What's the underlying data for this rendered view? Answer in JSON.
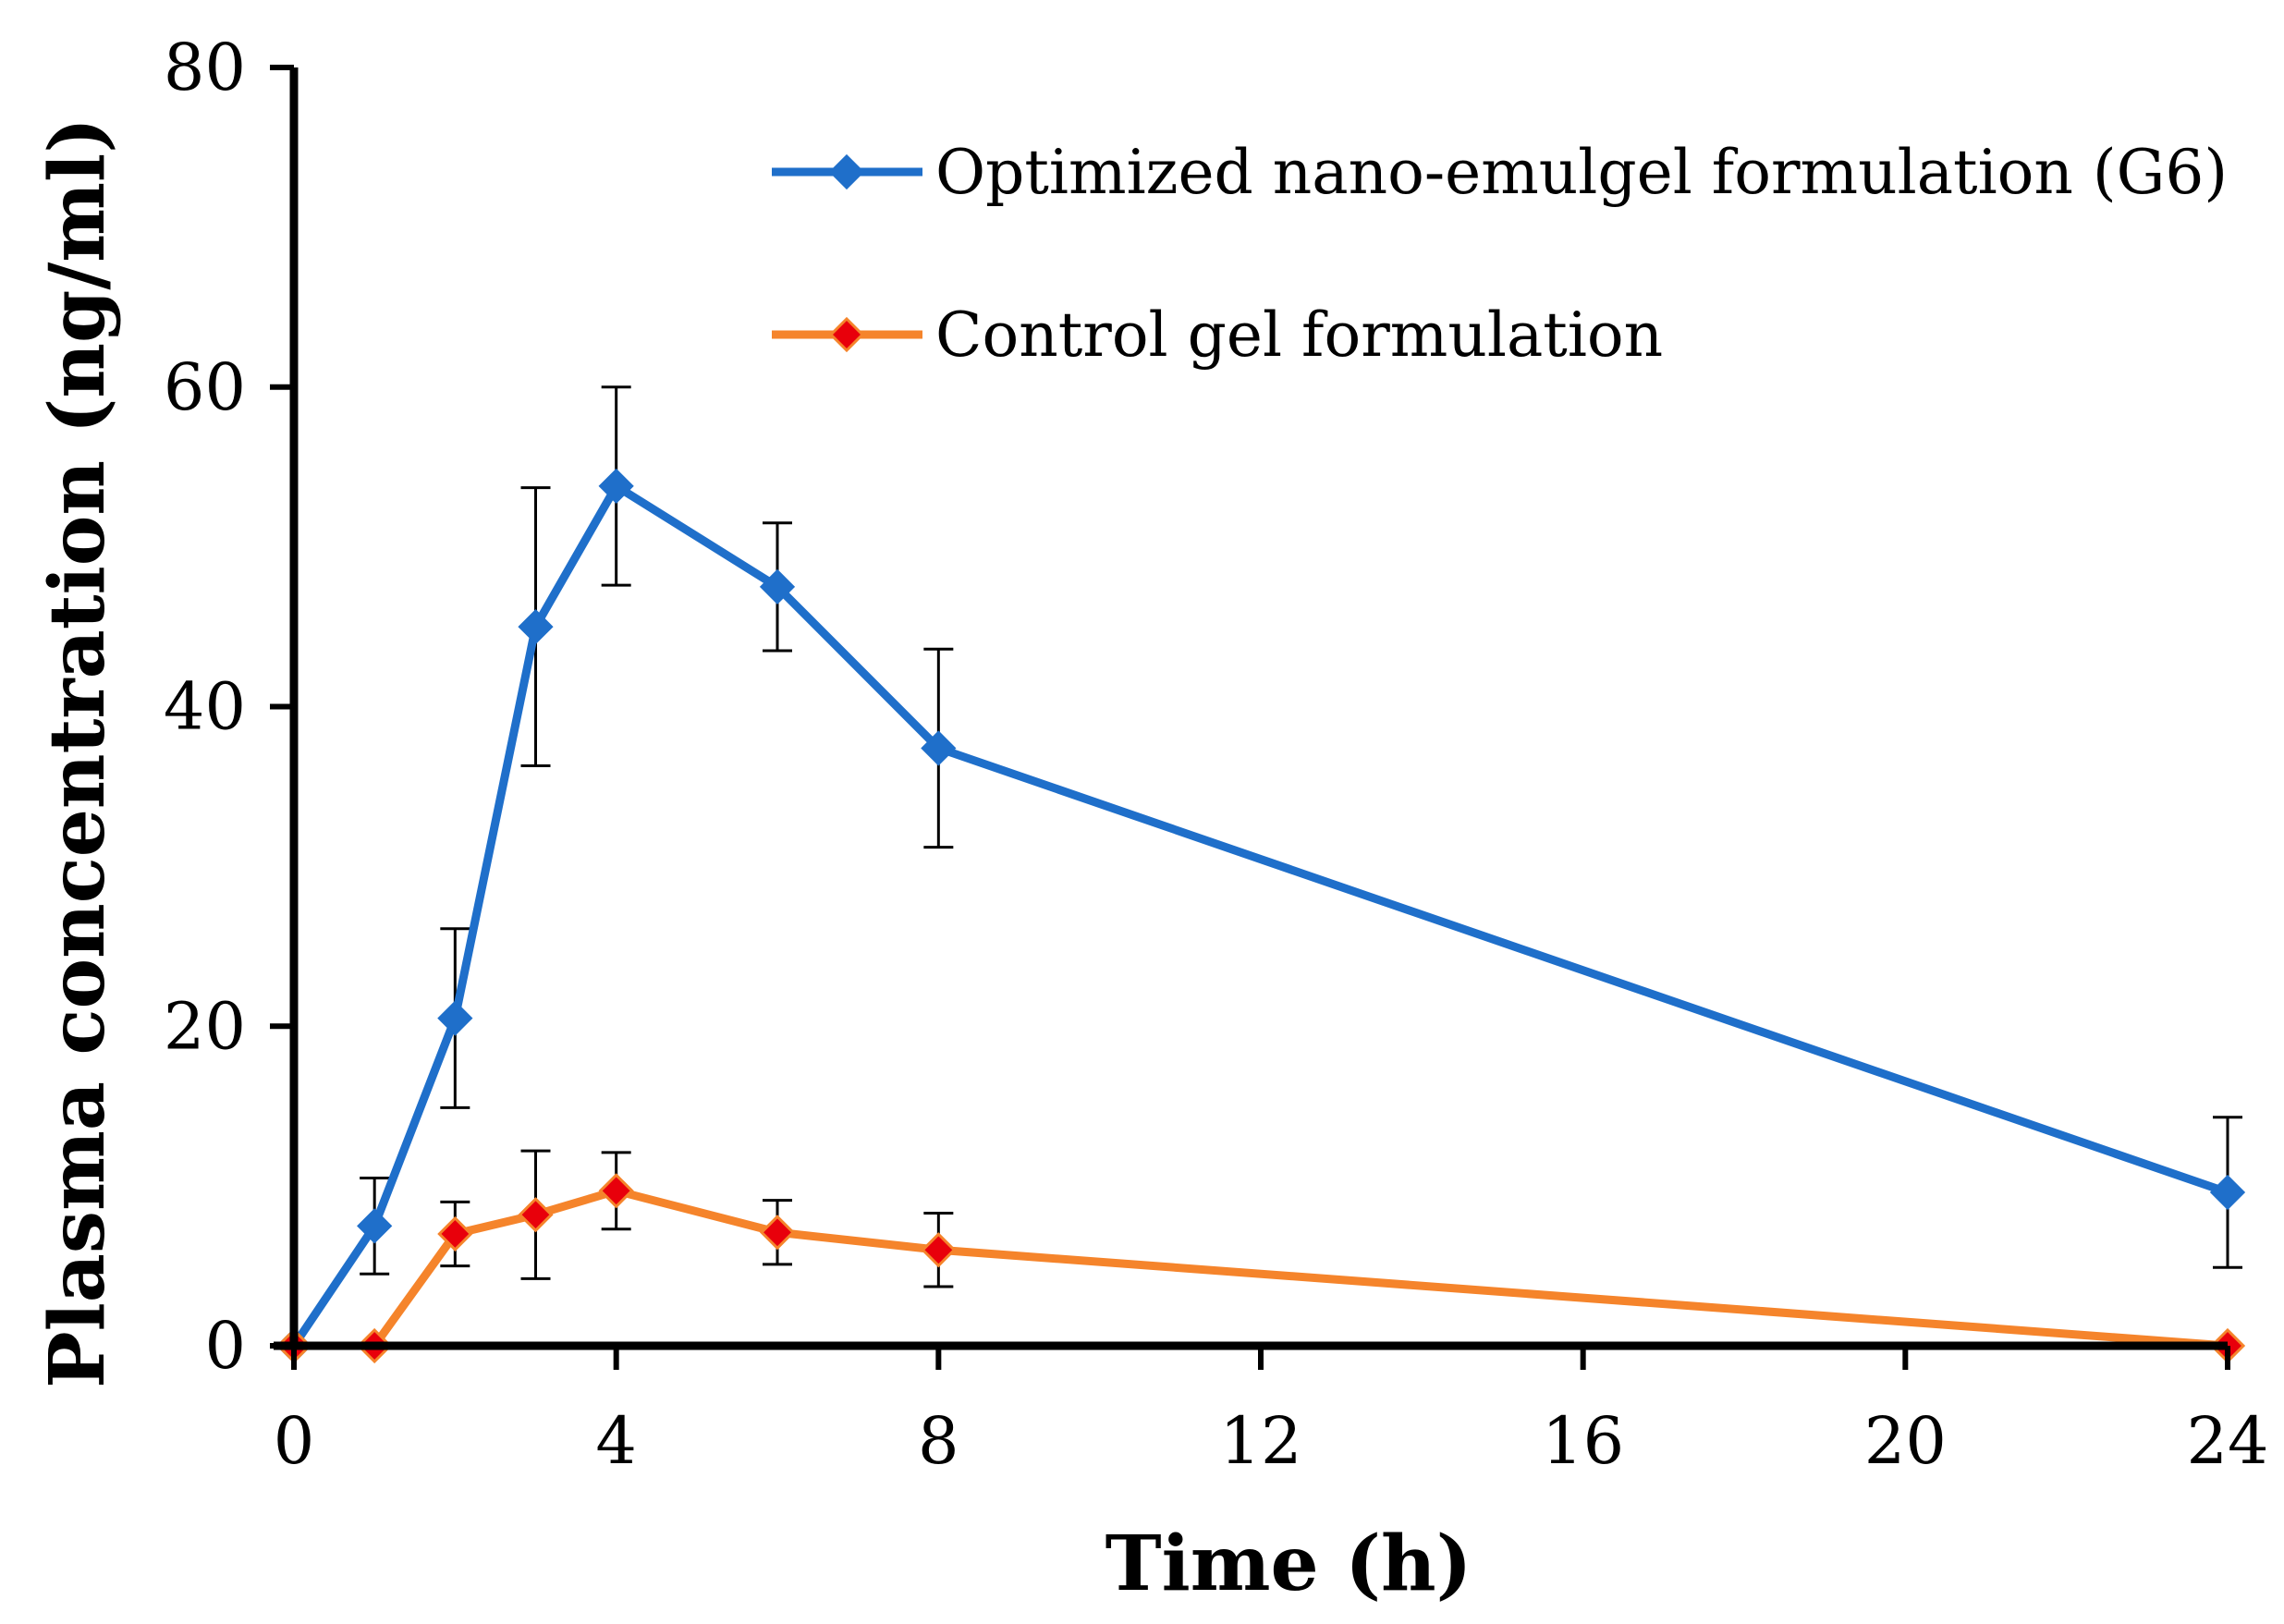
{
  "chart_data": {
    "type": "line",
    "title": "",
    "xlabel": "Time (h)",
    "ylabel": "Plasma concentration (ng/ml)",
    "xlim": [
      0,
      24
    ],
    "ylim": [
      0,
      80
    ],
    "xticks": [
      0,
      4,
      8,
      12,
      16,
      20,
      24
    ],
    "yticks": [
      0,
      20,
      40,
      60,
      80
    ],
    "grid": false,
    "legend_position": "top-right",
    "series": [
      {
        "name": "Optimized nano-emulgel formulation (G6)",
        "color": "#1f6fca",
        "marker_color": "#1f6fca",
        "x": [
          0,
          1,
          2,
          3,
          4,
          6,
          8,
          24
        ],
        "y": [
          0,
          7.5,
          20.5,
          45.0,
          53.8,
          47.5,
          37.4,
          9.6
        ],
        "error": [
          0,
          3.0,
          5.6,
          8.7,
          6.2,
          4.0,
          6.2,
          4.7
        ]
      },
      {
        "name": "Control gel formulation",
        "color": "#f5842b",
        "marker_color": "#e8000b",
        "x": [
          0,
          1,
          2,
          3,
          4,
          6,
          8,
          24
        ],
        "y": [
          0,
          0,
          7.0,
          8.2,
          9.7,
          7.1,
          6.0,
          0
        ],
        "error": [
          0,
          0,
          2.0,
          4.0,
          2.4,
          2.0,
          2.3,
          0
        ]
      }
    ]
  }
}
